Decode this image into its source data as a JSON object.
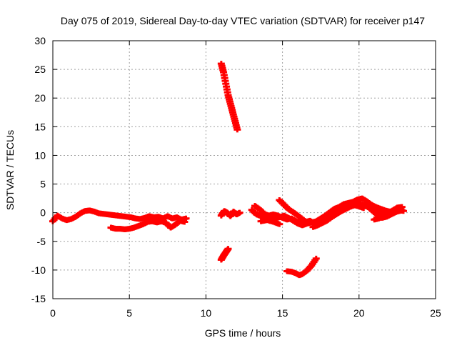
{
  "chart_data": {
    "type": "scatter",
    "title": "Day 075 of 2019, Sidereal Day-to-day VTEC variation (SDTVAR) for receiver p147",
    "xlabel": "GPS time / hours",
    "ylabel": "SDTVAR / TECUs",
    "xlim": [
      0,
      25
    ],
    "ylim": [
      -15,
      30
    ],
    "xticks": [
      0,
      5,
      10,
      15,
      20,
      25
    ],
    "yticks": [
      -15,
      -10,
      -5,
      0,
      5,
      10,
      15,
      20,
      25,
      30
    ],
    "grid": true,
    "legend": "none",
    "marker_color": "#ff0000",
    "series": [
      {
        "points": [
          [
            0.0,
            -1.5
          ],
          [
            0.3,
            -0.5
          ],
          [
            0.6,
            -1.0
          ],
          [
            0.9,
            -1.3
          ],
          [
            1.2,
            -1.1
          ],
          [
            1.5,
            -0.7
          ],
          [
            1.8,
            -0.1
          ],
          [
            2.1,
            0.3
          ],
          [
            2.4,
            0.4
          ],
          [
            2.7,
            0.2
          ],
          [
            3.0,
            -0.1
          ],
          [
            3.3,
            -0.2
          ],
          [
            3.6,
            -0.3
          ],
          [
            3.9,
            -0.4
          ],
          [
            4.2,
            -0.5
          ],
          [
            4.5,
            -0.6
          ],
          [
            4.8,
            -0.7
          ],
          [
            5.1,
            -0.8
          ],
          [
            5.4,
            -1.0
          ],
          [
            5.7,
            -1.1
          ],
          [
            6.0,
            -0.9
          ],
          [
            6.3,
            -0.6
          ],
          [
            6.6,
            -0.8
          ],
          [
            6.9,
            -0.7
          ],
          [
            7.2,
            -1.0
          ],
          [
            7.5,
            -0.6
          ],
          [
            7.8,
            -1.0
          ],
          [
            8.1,
            -0.8
          ],
          [
            8.4,
            -1.2
          ],
          [
            8.7,
            -1.0
          ]
        ]
      },
      {
        "points": [
          [
            3.8,
            -2.6
          ],
          [
            4.1,
            -2.8
          ],
          [
            4.4,
            -2.8
          ],
          [
            4.7,
            -2.9
          ],
          [
            5.0,
            -2.8
          ],
          [
            5.3,
            -2.6
          ],
          [
            5.6,
            -2.3
          ],
          [
            5.9,
            -2.0
          ],
          [
            6.2,
            -1.6
          ],
          [
            6.5,
            -1.5
          ],
          [
            6.8,
            -1.7
          ],
          [
            7.1,
            -1.5
          ],
          [
            7.4,
            -1.8
          ],
          [
            7.7,
            -2.6
          ],
          [
            8.0,
            -2.1
          ],
          [
            8.3,
            -1.4
          ],
          [
            8.6,
            -1.6
          ]
        ]
      },
      {
        "points": [
          [
            11.0,
            26.0
          ],
          [
            11.15,
            24.5
          ],
          [
            11.3,
            22.5
          ],
          [
            11.45,
            20.5
          ],
          [
            11.6,
            19.0
          ],
          [
            11.75,
            17.5
          ],
          [
            11.9,
            16.0
          ],
          [
            12.05,
            14.5
          ]
        ]
      },
      {
        "points": [
          [
            11.0,
            -8.2
          ],
          [
            11.15,
            -7.5
          ],
          [
            11.3,
            -6.9
          ],
          [
            11.45,
            -6.3
          ]
        ]
      },
      {
        "points": [
          [
            11.0,
            -0.5
          ],
          [
            11.2,
            0.3
          ],
          [
            11.4,
            0.0
          ],
          [
            11.6,
            -0.6
          ],
          [
            11.8,
            0.2
          ],
          [
            12.0,
            -0.3
          ],
          [
            12.2,
            0.0
          ]
        ]
      },
      {
        "points": [
          [
            13.0,
            0.5
          ],
          [
            13.3,
            -0.3
          ],
          [
            13.6,
            -0.6
          ],
          [
            13.9,
            -0.8
          ],
          [
            14.2,
            -0.9
          ],
          [
            14.5,
            -1.0
          ],
          [
            14.8,
            -0.8
          ],
          [
            15.1,
            -0.5
          ],
          [
            15.4,
            -0.9
          ],
          [
            15.7,
            -1.4
          ],
          [
            16.0,
            -1.9
          ],
          [
            16.3,
            -2.2
          ],
          [
            16.6,
            -1.9
          ],
          [
            16.9,
            -1.7
          ],
          [
            17.2,
            -1.5
          ],
          [
            17.5,
            -1.0
          ],
          [
            17.8,
            -0.5
          ],
          [
            18.1,
            0.1
          ],
          [
            18.4,
            0.7
          ],
          [
            18.7,
            1.0
          ],
          [
            19.0,
            1.5
          ],
          [
            19.3,
            1.7
          ],
          [
            19.6,
            1.9
          ],
          [
            19.9,
            2.3
          ],
          [
            20.2,
            2.5
          ],
          [
            20.5,
            2.0
          ],
          [
            20.8,
            1.4
          ],
          [
            21.1,
            1.0
          ],
          [
            21.4,
            0.7
          ],
          [
            21.7,
            0.4
          ],
          [
            22.0,
            0.2
          ],
          [
            22.3,
            0.3
          ],
          [
            22.6,
            0.5
          ],
          [
            22.9,
            0.3
          ]
        ]
      },
      {
        "points": [
          [
            13.2,
            1.2
          ],
          [
            13.5,
            0.6
          ],
          [
            13.8,
            -0.2
          ],
          [
            14.1,
            -0.5
          ],
          [
            14.4,
            -0.3
          ],
          [
            14.7,
            -0.5
          ],
          [
            15.0,
            -0.9
          ],
          [
            15.3,
            -1.2
          ],
          [
            15.6,
            -1.0
          ],
          [
            15.9,
            -1.5
          ],
          [
            16.2,
            -1.8
          ],
          [
            16.5,
            -1.6
          ],
          [
            16.8,
            -1.4
          ],
          [
            17.1,
            -1.9
          ],
          [
            17.4,
            -1.6
          ],
          [
            17.7,
            -1.1
          ],
          [
            18.0,
            -0.4
          ],
          [
            18.3,
            0.1
          ],
          [
            18.6,
            0.4
          ],
          [
            18.9,
            0.8
          ],
          [
            19.2,
            1.1
          ],
          [
            19.5,
            1.4
          ],
          [
            19.8,
            1.6
          ],
          [
            20.1,
            1.5
          ],
          [
            20.4,
            1.2
          ],
          [
            20.7,
            0.9
          ],
          [
            21.0,
            0.4
          ],
          [
            21.3,
            -0.1
          ],
          [
            21.6,
            0.1
          ],
          [
            21.9,
            -0.3
          ],
          [
            22.2,
            0.0
          ],
          [
            22.5,
            0.2
          ],
          [
            22.8,
            0.4
          ]
        ]
      },
      {
        "points": [
          [
            14.8,
            2.2
          ],
          [
            15.1,
            1.4
          ],
          [
            15.4,
            0.6
          ],
          [
            15.7,
            0.1
          ],
          [
            16.0,
            -0.5
          ],
          [
            16.3,
            -1.1
          ]
        ]
      },
      {
        "points": [
          [
            13.6,
            -1.5
          ],
          [
            14.0,
            -1.3
          ],
          [
            14.4,
            -1.6
          ],
          [
            14.8,
            -2.0
          ]
        ]
      },
      {
        "points": [
          [
            17.0,
            -2.5
          ],
          [
            17.3,
            -2.2
          ],
          [
            17.6,
            -1.8
          ],
          [
            17.9,
            -1.4
          ],
          [
            18.2,
            -0.8
          ],
          [
            18.5,
            -0.3
          ],
          [
            18.8,
            0.2
          ],
          [
            19.1,
            0.6
          ],
          [
            19.4,
            1.0
          ],
          [
            19.7,
            1.3
          ],
          [
            20.0,
            1.1
          ],
          [
            20.3,
            0.8
          ]
        ]
      },
      {
        "points": [
          [
            20.6,
            1.0
          ],
          [
            20.9,
            0.3
          ],
          [
            21.2,
            -0.4
          ],
          [
            21.5,
            -0.9
          ],
          [
            21.8,
            -0.7
          ],
          [
            22.1,
            -0.3
          ],
          [
            22.4,
            0.1
          ],
          [
            22.7,
            0.5
          ]
        ]
      },
      {
        "points": [
          [
            21.0,
            -1.2
          ],
          [
            21.3,
            -1.0
          ],
          [
            21.6,
            -0.6
          ],
          [
            21.9,
            -0.1
          ],
          [
            22.2,
            0.4
          ],
          [
            22.5,
            0.9
          ],
          [
            22.8,
            1.0
          ]
        ]
      },
      {
        "points": [
          [
            15.3,
            -10.2
          ],
          [
            15.6,
            -10.3
          ],
          [
            15.9,
            -10.6
          ],
          [
            16.1,
            -10.9
          ],
          [
            16.3,
            -10.7
          ],
          [
            16.6,
            -10.1
          ],
          [
            16.9,
            -9.2
          ],
          [
            17.2,
            -8.0
          ]
        ]
      }
    ]
  }
}
